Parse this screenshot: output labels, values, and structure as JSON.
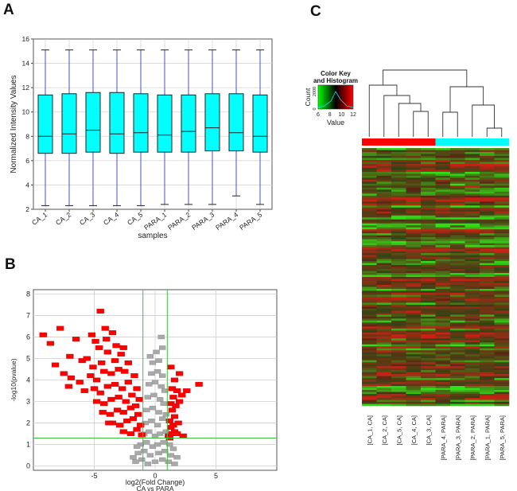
{
  "panels": {
    "a": "A",
    "b": "B",
    "c": "C"
  },
  "chart_data": [
    {
      "type": "box",
      "panel": "A",
      "xlabel": "samples",
      "ylabel": "Normalized Intensity Values",
      "ylim": [
        2,
        16
      ],
      "yticks": [
        2,
        4,
        6,
        8,
        10,
        12,
        14,
        16
      ],
      "grid": true,
      "box_color": "#00ffff",
      "whisker_color": "#4b4bd6",
      "categories": [
        "CA_1",
        "CA_2",
        "CA_3",
        "CA_4",
        "CA_5",
        "PARA_1",
        "PARA_2",
        "PARA_3",
        "PARA_4",
        "PARA_5"
      ],
      "boxes": [
        {
          "min": 2.3,
          "q1": 6.6,
          "median": 8.0,
          "q3": 11.4,
          "max": 15.1
        },
        {
          "min": 2.3,
          "q1": 6.6,
          "median": 8.2,
          "q3": 11.5,
          "max": 15.1
        },
        {
          "min": 2.3,
          "q1": 6.7,
          "median": 8.5,
          "q3": 11.6,
          "max": 15.1
        },
        {
          "min": 2.3,
          "q1": 6.6,
          "median": 8.2,
          "q3": 11.6,
          "max": 15.1
        },
        {
          "min": 2.3,
          "q1": 6.7,
          "median": 8.3,
          "q3": 11.5,
          "max": 15.1
        },
        {
          "min": 2.4,
          "q1": 6.7,
          "median": 8.1,
          "q3": 11.4,
          "max": 15.1
        },
        {
          "min": 2.4,
          "q1": 6.7,
          "median": 8.4,
          "q3": 11.4,
          "max": 15.1
        },
        {
          "min": 2.4,
          "q1": 6.8,
          "median": 8.7,
          "q3": 11.5,
          "max": 15.1
        },
        {
          "min": 3.1,
          "q1": 6.8,
          "median": 8.3,
          "q3": 11.5,
          "max": 15.1
        },
        {
          "min": 2.4,
          "q1": 6.7,
          "median": 8.0,
          "q3": 11.4,
          "max": 15.1
        }
      ]
    },
    {
      "type": "scatter",
      "panel": "B",
      "title": "",
      "xlabel": "log2(Fold Change)",
      "xlabel2": "CA vs PARA",
      "ylabel": "-log10(pvalue)",
      "xlim": [
        -10,
        10
      ],
      "ylim": [
        -0.2,
        8.2
      ],
      "xticks": [
        -5,
        0,
        5
      ],
      "yticks": [
        0,
        1,
        2,
        3,
        4,
        5,
        6,
        7,
        8
      ],
      "grid": true,
      "fold_change_cutoffs": [
        -1,
        1
      ],
      "pvalue_cutoff": 1.3,
      "significant_color": "#ff0000",
      "nonsignificant_color": "#a9a9a9",
      "series": [
        {
          "name": "significant",
          "points": [
            [
              -9.2,
              6.1
            ],
            [
              -8.6,
              5.7
            ],
            [
              -7.8,
              6.4
            ],
            [
              -7.0,
              5.1
            ],
            [
              -6.5,
              5.9
            ],
            [
              -6.0,
              4.9
            ],
            [
              -8.2,
              4.7
            ],
            [
              -7.5,
              4.3
            ],
            [
              -6.9,
              4.1
            ],
            [
              -7.1,
              3.7
            ],
            [
              -6.2,
              3.9
            ],
            [
              -5.8,
              3.5
            ],
            [
              -4.5,
              7.2
            ],
            [
              -5.2,
              6.1
            ],
            [
              -4.9,
              5.8
            ],
            [
              -4.1,
              6.4
            ],
            [
              -3.5,
              6.2
            ],
            [
              -4.6,
              5.5
            ],
            [
              -5.6,
              5.0
            ],
            [
              -5.1,
              4.6
            ],
            [
              -4.4,
              4.8
            ],
            [
              -3.9,
              5.3
            ],
            [
              -3.3,
              4.9
            ],
            [
              -2.8,
              5.2
            ],
            [
              -5.3,
              4.2
            ],
            [
              -4.8,
              4.0
            ],
            [
              -4.2,
              4.4
            ],
            [
              -3.6,
              4.3
            ],
            [
              -3.0,
              4.5
            ],
            [
              -2.5,
              4.4
            ],
            [
              -5.0,
              3.6
            ],
            [
              -4.5,
              3.4
            ],
            [
              -3.9,
              3.7
            ],
            [
              -3.3,
              3.8
            ],
            [
              -2.7,
              3.6
            ],
            [
              -2.2,
              3.9
            ],
            [
              -4.8,
              3.0
            ],
            [
              -4.2,
              2.9
            ],
            [
              -3.6,
              3.1
            ],
            [
              -3.0,
              3.2
            ],
            [
              -2.4,
              3.0
            ],
            [
              -1.9,
              3.3
            ],
            [
              -4.3,
              2.5
            ],
            [
              -3.7,
              2.4
            ],
            [
              -3.1,
              2.6
            ],
            [
              -2.6,
              2.5
            ],
            [
              -2.0,
              2.7
            ],
            [
              -1.6,
              2.8
            ],
            [
              -3.5,
              2.0
            ],
            [
              -2.9,
              1.9
            ],
            [
              -2.3,
              2.1
            ],
            [
              -1.8,
              2.2
            ],
            [
              -1.4,
              2.4
            ],
            [
              -2.6,
              1.6
            ],
            [
              -2.0,
              1.5
            ],
            [
              -1.5,
              1.7
            ],
            [
              -1.2,
              1.9
            ],
            [
              -1.1,
              1.45
            ],
            [
              -3.2,
              5.6
            ],
            [
              -2.6,
              5.5
            ],
            [
              -2.2,
              4.8
            ],
            [
              -1.7,
              4.2
            ],
            [
              -1.5,
              3.6
            ],
            [
              -1.3,
              3.1
            ],
            [
              -3.8,
              2.0
            ],
            [
              -4.0,
              5.9
            ],
            [
              1.1,
              1.4
            ],
            [
              1.4,
              1.5
            ],
            [
              1.6,
              1.6
            ],
            [
              1.3,
              1.8
            ],
            [
              1.5,
              1.9
            ],
            [
              1.8,
              1.5
            ],
            [
              1.2,
              2.1
            ],
            [
              1.6,
              2.3
            ],
            [
              1.4,
              2.6
            ],
            [
              1.9,
              2.0
            ],
            [
              1.3,
              2.9
            ],
            [
              1.7,
              2.8
            ],
            [
              1.5,
              3.2
            ],
            [
              2.0,
              3.0
            ],
            [
              1.4,
              3.6
            ],
            [
              1.8,
              3.5
            ],
            [
              2.2,
              3.3
            ],
            [
              1.6,
              4.0
            ],
            [
              2.0,
              4.3
            ],
            [
              1.3,
              4.6
            ],
            [
              2.6,
              3.5
            ],
            [
              3.6,
              3.8
            ],
            [
              1.2,
              1.3
            ],
            [
              2.3,
              1.4
            ]
          ]
        },
        {
          "name": "not significant",
          "points": [
            [
              -1.6,
              0.2
            ],
            [
              -1.1,
              0.3
            ],
            [
              -0.6,
              0.1
            ],
            [
              0.0,
              0.2
            ],
            [
              0.6,
              0.3
            ],
            [
              1.1,
              0.2
            ],
            [
              1.6,
              0.1
            ],
            [
              -1.4,
              0.6
            ],
            [
              -0.9,
              0.7
            ],
            [
              -0.4,
              0.5
            ],
            [
              0.3,
              0.6
            ],
            [
              0.8,
              0.7
            ],
            [
              1.3,
              0.5
            ],
            [
              -1.2,
              1.0
            ],
            [
              -0.7,
              1.1
            ],
            [
              -0.2,
              0.9
            ],
            [
              0.2,
              1.0
            ],
            [
              0.7,
              1.1
            ],
            [
              1.2,
              1.0
            ],
            [
              -0.9,
              1.5
            ],
            [
              -0.5,
              1.6
            ],
            [
              0.0,
              1.4
            ],
            [
              0.4,
              1.5
            ],
            [
              0.9,
              1.6
            ],
            [
              -0.8,
              2.0
            ],
            [
              -0.3,
              2.1
            ],
            [
              0.2,
              1.9
            ],
            [
              0.6,
              2.2
            ],
            [
              0.9,
              2.4
            ],
            [
              -0.7,
              2.6
            ],
            [
              -0.2,
              2.7
            ],
            [
              0.3,
              2.5
            ],
            [
              0.7,
              2.9
            ],
            [
              -0.6,
              3.2
            ],
            [
              -0.1,
              3.3
            ],
            [
              0.4,
              3.1
            ],
            [
              0.8,
              3.5
            ],
            [
              -0.5,
              3.8
            ],
            [
              0.0,
              3.9
            ],
            [
              0.5,
              3.7
            ],
            [
              -0.3,
              4.3
            ],
            [
              0.2,
              4.4
            ],
            [
              0.6,
              4.2
            ],
            [
              -0.2,
              4.8
            ],
            [
              0.3,
              4.9
            ],
            [
              0.1,
              5.3
            ],
            [
              0.6,
              5.5
            ],
            [
              0.5,
              6.0
            ],
            [
              -0.4,
              5.1
            ],
            [
              -1.5,
              0.9
            ],
            [
              1.5,
              0.8
            ],
            [
              -1.8,
              0.4
            ],
            [
              1.8,
              0.4
            ]
          ]
        }
      ]
    },
    {
      "type": "heatmap",
      "panel": "C",
      "color_key_title": "Color Key",
      "color_key_subtitle": "and Histogram",
      "color_key_ylabel": "Count",
      "color_key_yticks": [
        "0",
        "2000"
      ],
      "color_key_xlabel": "Value",
      "color_key_ticks": [
        6,
        8,
        10,
        12
      ],
      "color_low": "#00ff00",
      "color_mid": "#000000",
      "color_high": "#ff0000",
      "group_colors": {
        "CA": "#ff0000",
        "PARA": "#00ffff"
      },
      "columns": [
        "[CA_1, CA]",
        "[CA_2, CA]",
        "[CA_5, CA]",
        "[CA_4, CA]",
        "[CA_3, CA]",
        "[PARA_4, PARA]",
        "[PARA_3, PARA]",
        "[PARA_2, PARA]",
        "[PARA_1, PARA]",
        "[PARA_5, PARA]"
      ],
      "groups": [
        "CA",
        "CA",
        "CA",
        "CA",
        "CA",
        "PARA",
        "PARA",
        "PARA",
        "PARA",
        "PARA"
      ],
      "row_count": 130,
      "dendrogram": "((CA_1,(CA_2,(CA_5,(CA_4,CA_3)))),((PARA_4,PARA_3),(PARA_2,(PARA_1,PARA_5))))"
    }
  ]
}
